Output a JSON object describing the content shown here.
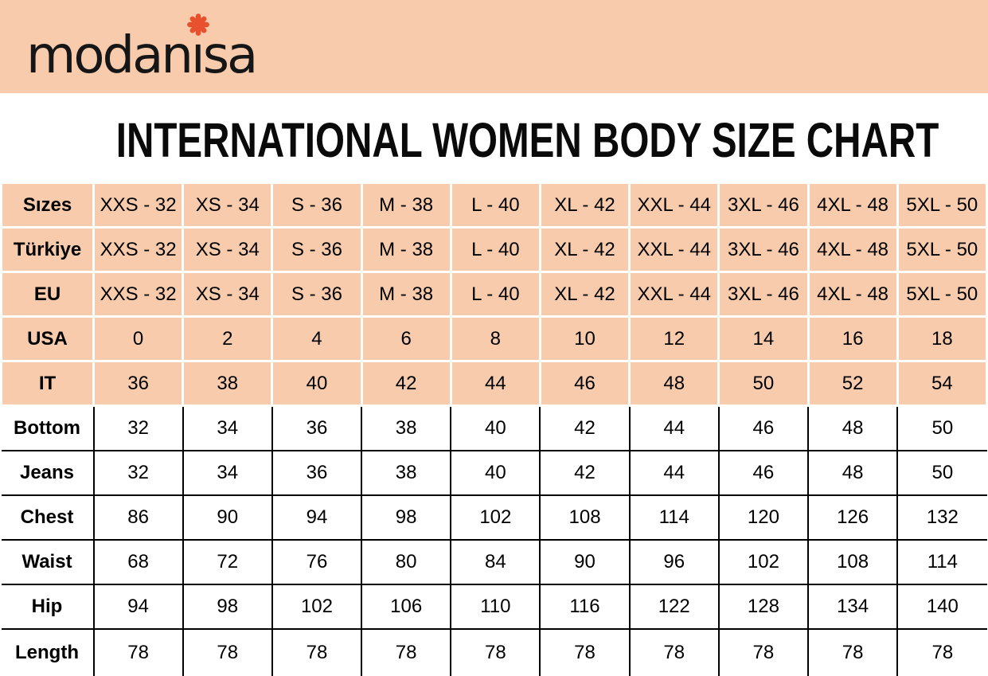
{
  "colors": {
    "banner_peach": "#F7CBAC",
    "logo_red": "#E8502E",
    "grid_white": "#FFFFFF",
    "grid_black": "#000000",
    "text_black": "#000000"
  },
  "logo": {
    "text_before_i": "modan",
    "dotless_i": "ı",
    "text_after_i": "sa",
    "asterisk_icon": "eight-petal-flower-asterisk"
  },
  "title": "INTERNATIONAL WOMEN BODY SIZE CHART",
  "chart_data": {
    "type": "table",
    "title": "INTERNATIONAL WOMEN BODY SIZE CHART",
    "layout": "first 5 rows peach with white gridlines, last 6 rows white with black gridlines",
    "rows": [
      {
        "label": "Sızes",
        "style": "peach",
        "values": [
          "XXS - 32",
          "XS - 34",
          "S - 36",
          "M - 38",
          "L - 40",
          "XL - 42",
          "XXL - 44",
          "3XL - 46",
          "4XL - 48",
          "5XL - 50"
        ]
      },
      {
        "label": "Türkiye",
        "style": "peach",
        "values": [
          "XXS - 32",
          "XS - 34",
          "S - 36",
          "M - 38",
          "L - 40",
          "XL - 42",
          "XXL - 44",
          "3XL - 46",
          "4XL - 48",
          "5XL - 50"
        ]
      },
      {
        "label": "EU",
        "style": "peach",
        "values": [
          "XXS - 32",
          "XS - 34",
          "S - 36",
          "M - 38",
          "L - 40",
          "XL - 42",
          "XXL - 44",
          "3XL - 46",
          "4XL - 48",
          "5XL - 50"
        ]
      },
      {
        "label": "USA",
        "style": "peach",
        "values": [
          "0",
          "2",
          "4",
          "6",
          "8",
          "10",
          "12",
          "14",
          "16",
          "18"
        ]
      },
      {
        "label": "IT",
        "style": "peach",
        "values": [
          "36",
          "38",
          "40",
          "42",
          "44",
          "46",
          "48",
          "50",
          "52",
          "54"
        ]
      },
      {
        "label": "Bottom",
        "style": "white",
        "values": [
          "32",
          "34",
          "36",
          "38",
          "40",
          "42",
          "44",
          "46",
          "48",
          "50"
        ]
      },
      {
        "label": "Jeans",
        "style": "white",
        "values": [
          "32",
          "34",
          "36",
          "38",
          "40",
          "42",
          "44",
          "46",
          "48",
          "50"
        ]
      },
      {
        "label": "Chest",
        "style": "white",
        "values": [
          "86",
          "90",
          "94",
          "98",
          "102",
          "108",
          "114",
          "120",
          "126",
          "132"
        ]
      },
      {
        "label": "Waist",
        "style": "white",
        "values": [
          "68",
          "72",
          "76",
          "80",
          "84",
          "90",
          "96",
          "102",
          "108",
          "114"
        ]
      },
      {
        "label": "Hip",
        "style": "white",
        "values": [
          "94",
          "98",
          "102",
          "106",
          "110",
          "116",
          "122",
          "128",
          "134",
          "140"
        ]
      },
      {
        "label": "Length",
        "style": "white",
        "values": [
          "78",
          "78",
          "78",
          "78",
          "78",
          "78",
          "78",
          "78",
          "78",
          "78"
        ]
      }
    ]
  }
}
